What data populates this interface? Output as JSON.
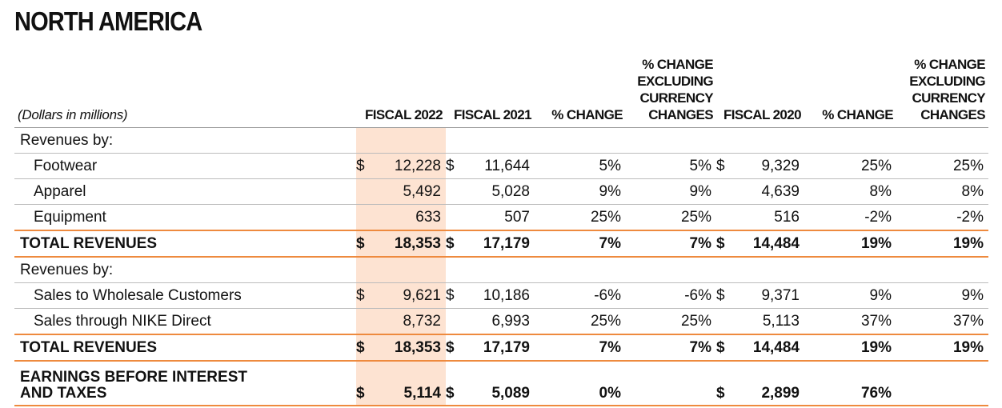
{
  "header": {
    "title": "NORTH AMERICA",
    "note": "(Dollars in millions)",
    "columns": [
      "FISCAL 2022",
      "FISCAL 2021",
      "% CHANGE",
      "% CHANGE\nEXCLUDING\nCURRENCY\nCHANGES",
      "FISCAL 2020",
      "% CHANGE",
      "% CHANGE\nEXCLUDING\nCURRENCY\nCHANGES"
    ]
  },
  "table": {
    "rows": [
      {
        "label": "Revenues by:",
        "style": "section",
        "cells": [
          null,
          null,
          null,
          null,
          null,
          null,
          null
        ]
      },
      {
        "label": "Footwear",
        "style": "indent",
        "cells": [
          {
            "currency": "$",
            "text": "12,228"
          },
          {
            "currency": "$",
            "text": "11,644"
          },
          "5%",
          "5%",
          {
            "currency": "$",
            "text": "9,329"
          },
          "25%",
          "25%"
        ]
      },
      {
        "label": "Apparel",
        "style": "indent",
        "cells": [
          "5,492",
          "5,028",
          "9%",
          "9%",
          "4,639",
          "8%",
          "8%"
        ]
      },
      {
        "label": "Equipment",
        "style": "indent",
        "cells": [
          "633",
          "507",
          "25%",
          "25%",
          "516",
          "-2%",
          "-2%"
        ]
      },
      {
        "label": "TOTAL REVENUES",
        "style": "total",
        "cells": [
          {
            "currency": "$",
            "text": "18,353"
          },
          {
            "currency": "$",
            "text": "17,179"
          },
          "7%",
          "7%",
          {
            "currency": "$",
            "text": "14,484"
          },
          "19%",
          "19%"
        ]
      },
      {
        "label": "Revenues by:",
        "style": "section",
        "cells": [
          null,
          null,
          null,
          null,
          null,
          null,
          null
        ]
      },
      {
        "label": "Sales to Wholesale Customers",
        "style": "indent",
        "cells": [
          {
            "currency": "$",
            "text": "9,621"
          },
          {
            "currency": "$",
            "text": "10,186"
          },
          "-6%",
          "-6%",
          {
            "currency": "$",
            "text": "9,371"
          },
          "9%",
          "9%"
        ]
      },
      {
        "label": "Sales through NIKE Direct",
        "style": "indent",
        "cells": [
          "8,732",
          "6,993",
          "25%",
          "25%",
          "5,113",
          "37%",
          "37%"
        ]
      },
      {
        "label": "TOTAL REVENUES",
        "style": "total",
        "cells": [
          {
            "currency": "$",
            "text": "18,353"
          },
          {
            "currency": "$",
            "text": "17,179"
          },
          "7%",
          "7%",
          {
            "currency": "$",
            "text": "14,484"
          },
          "19%",
          "19%"
        ]
      },
      {
        "label": "EARNINGS BEFORE INTEREST\nAND TAXES",
        "style": "total",
        "cells": [
          {
            "currency": "$",
            "text": "5,114"
          },
          {
            "currency": "$",
            "text": "5,089"
          },
          "0%",
          null,
          {
            "currency": "$",
            "text": "2,899"
          },
          "76%",
          null
        ]
      }
    ]
  }
}
